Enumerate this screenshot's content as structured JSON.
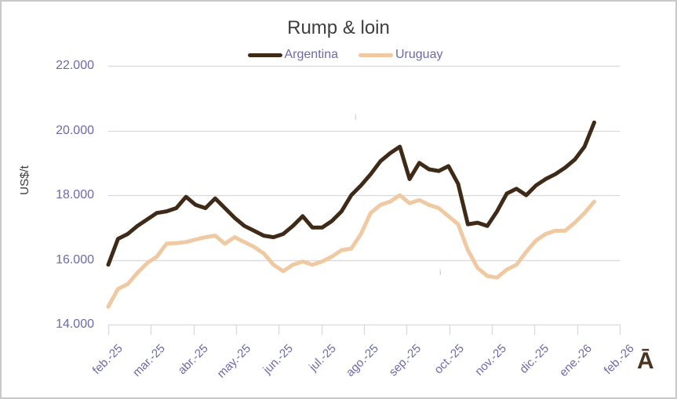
{
  "chart_data": {
    "type": "line",
    "title": "Rump & loin",
    "ylabel": "US$/t",
    "xlabel": "",
    "ylim": [
      14000,
      22000
    ],
    "grid": "horizontal",
    "legend_position": "top-center",
    "frequency": "weekly",
    "y_ticks": [
      {
        "value": 22000,
        "label": "22.000"
      },
      {
        "value": 20000,
        "label": "20.000"
      },
      {
        "value": 18000,
        "label": "18.000"
      },
      {
        "value": 16000,
        "label": "16.000"
      },
      {
        "value": 14000,
        "label": "14.000"
      }
    ],
    "x_tick_labels": [
      "feb.-25",
      "mar.-25",
      "abr.-25",
      "may.-25",
      "jun.-25",
      "jul.-25",
      "ago.-25",
      "sep.-25",
      "oct.-25",
      "nov.-25",
      "dic.-25",
      "ene.-26",
      "feb.-26"
    ],
    "series": [
      {
        "name": "Argentina",
        "color": "#3e2a17",
        "values": [
          15850,
          16650,
          16800,
          17050,
          17250,
          17450,
          17500,
          17600,
          17950,
          17700,
          17600,
          17900,
          17600,
          17300,
          17050,
          16900,
          16750,
          16700,
          16800,
          17050,
          17350,
          17000,
          17000,
          17200,
          17500,
          18000,
          18300,
          18650,
          19050,
          19300,
          19500,
          18500,
          19000,
          18800,
          18750,
          18900,
          18350,
          17100,
          17150,
          17050,
          17500,
          18050,
          18200,
          18000,
          18300,
          18500,
          18650,
          18850,
          19100,
          19500,
          20250
        ]
      },
      {
        "name": "Uruguay",
        "color": "#efc9a1",
        "values": [
          14550,
          15100,
          15250,
          15600,
          15900,
          16100,
          16500,
          16520,
          16550,
          16630,
          16700,
          16750,
          16500,
          16700,
          16550,
          16400,
          16200,
          15850,
          15650,
          15850,
          15950,
          15850,
          15950,
          16100,
          16300,
          16350,
          16800,
          17450,
          17700,
          17800,
          18000,
          17750,
          17850,
          17700,
          17600,
          17350,
          17100,
          16300,
          15750,
          15500,
          15450,
          15700,
          15850,
          16250,
          16600,
          16800,
          16900,
          16900,
          17150,
          17450,
          17800
        ]
      }
    ]
  },
  "colors": {
    "axis_text": "#6c6aa7",
    "title_text": "#3e3e3e",
    "y_axis_title_text": "#3a3a3a",
    "gridline": "#d9d9d9",
    "frame_border": "#c9c9c9",
    "stray_glyph": "#4b3322",
    "faint_mark": "#c5c4c8"
  },
  "annotations": {
    "stray_glyph": "Ā",
    "faint_mark_1": "i",
    "faint_mark_2": "i"
  }
}
